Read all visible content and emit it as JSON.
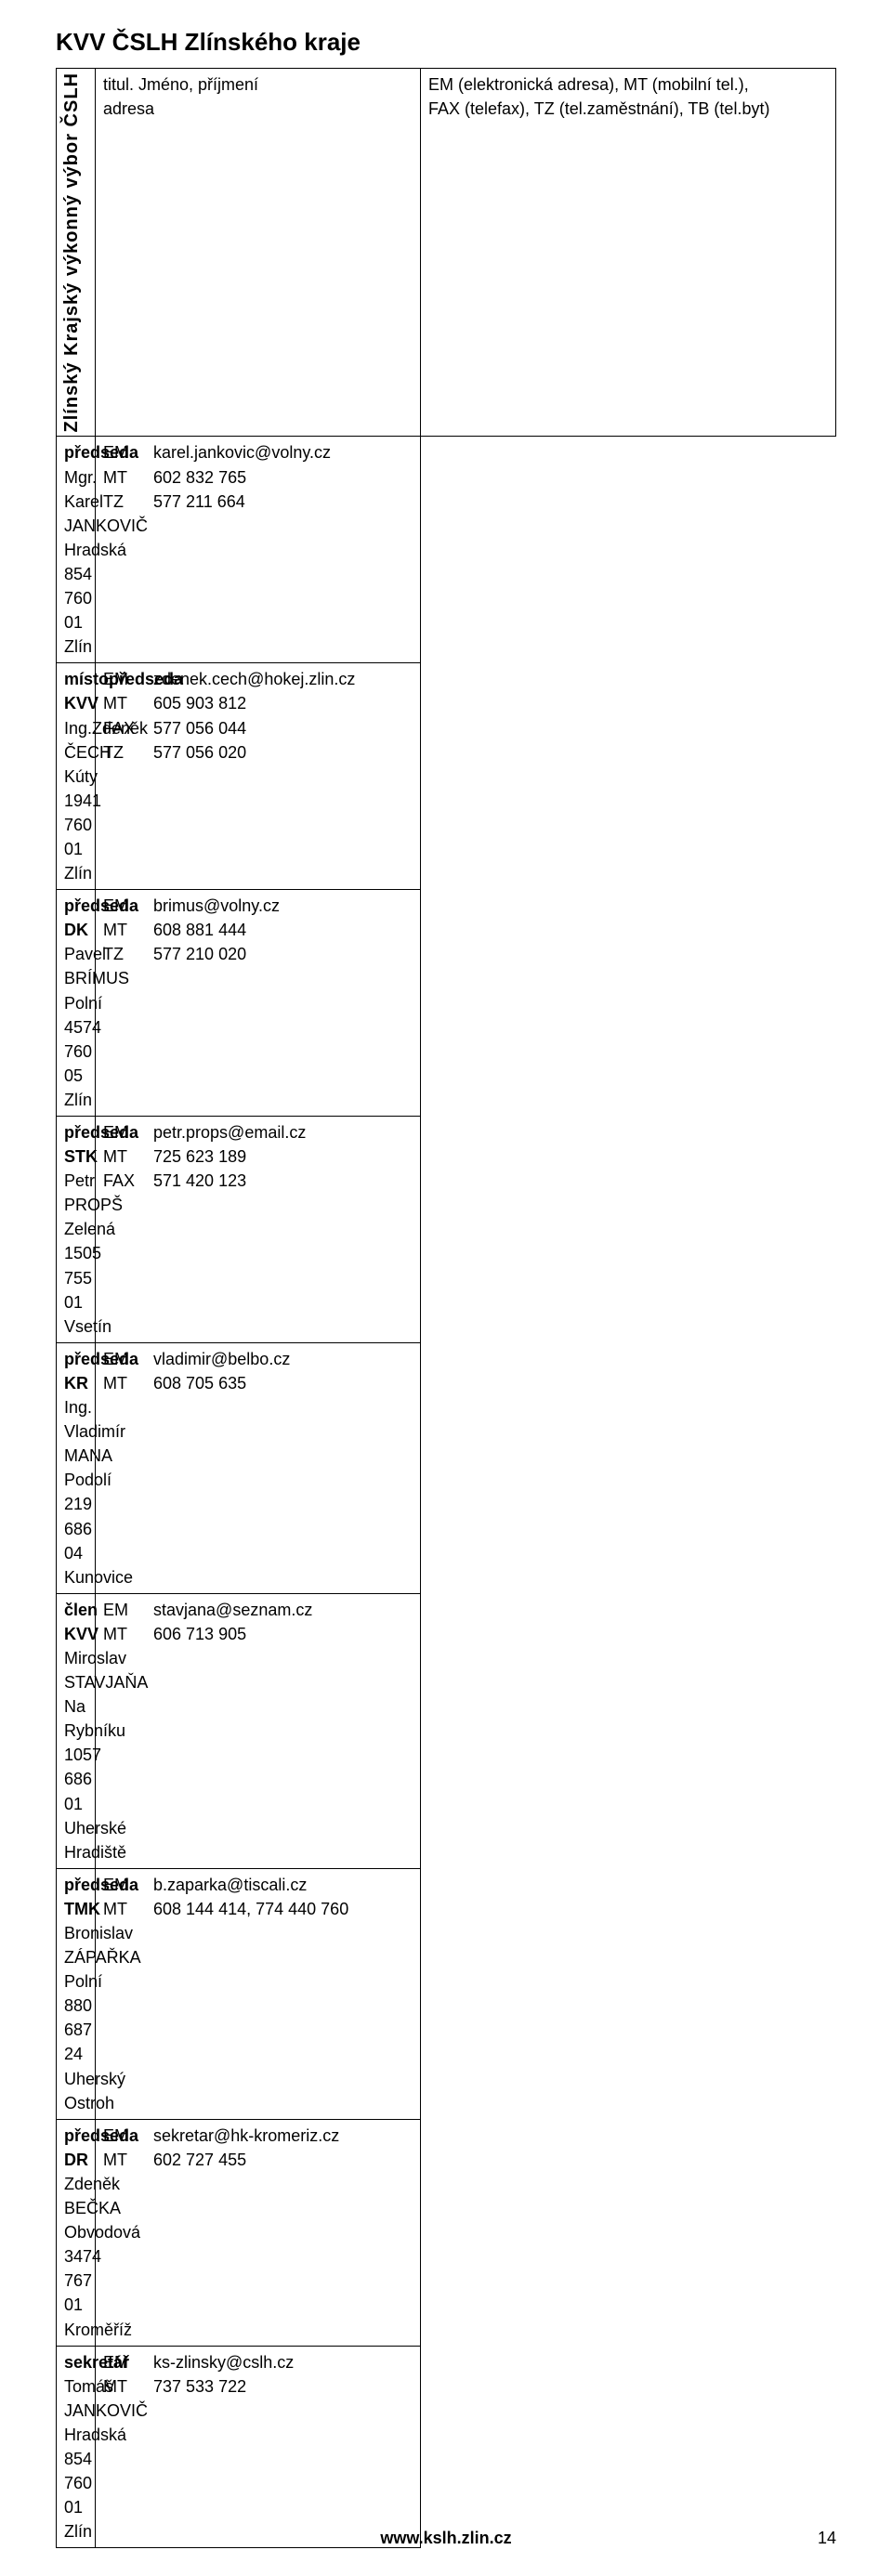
{
  "title": "KVV ČSLH Zlínského kraje",
  "sidebar_label": "Zlínský Krajský výkonný výbor ČSLH",
  "header_left_lines": [
    "titul. Jméno, příjmení",
    "adresa"
  ],
  "header_right_lines": [
    "EM (elektronická adresa), MT (mobilní tel.),",
    "FAX (telefax), TZ (tel.zaměstnání), TB (tel.byt)"
  ],
  "rows": [
    {
      "left": {
        "role": "předseda",
        "lines": [
          "Mgr. Karel JANKOVIČ",
          "Hradská 854",
          "760 01  Zlín"
        ]
      },
      "right": [
        [
          "EM",
          "karel.jankovic@volny.cz"
        ],
        [
          "MT",
          "602 832 765"
        ],
        [
          "TZ",
          "577 211 664"
        ]
      ]
    },
    {
      "left": {
        "role": "místopředseda KVV",
        "lines": [
          "Ing.Zdeněk ČECH",
          "Kúty 1941",
          "760 01  Zlín"
        ]
      },
      "right": [
        [
          "EM",
          "zdenek.cech@hokej.zlin.cz"
        ],
        [
          "MT",
          "605 903 812"
        ],
        [
          "FAX",
          "577 056 044"
        ],
        [
          "TZ",
          "577 056 020"
        ]
      ]
    },
    {
      "left": {
        "role": "předseda DK",
        "lines": [
          "Pavel BRÍMUS",
          "Polní 4574",
          "760 05  Zlín"
        ]
      },
      "right": [
        [
          "EM",
          "brimus@volny.cz"
        ],
        [
          "MT",
          "608 881 444"
        ],
        [
          "TZ",
          "577 210 020"
        ]
      ]
    },
    {
      "left": {
        "role": "předseda STK",
        "lines": [
          "Petr PROPŠ",
          "Zelená 1505",
          "755 01  Vsetín"
        ]
      },
      "right": [
        [
          "EM",
          "petr.props@email.cz"
        ],
        [
          "MT",
          "725 623 189"
        ],
        [
          "FAX",
          "571 420 123"
        ]
      ]
    },
    {
      "left": {
        "role": "předseda KR",
        "lines": [
          "Ing. Vladimír MANA",
          "Podolí 219",
          "686 04  Kunovice"
        ]
      },
      "right": [
        [
          "EM",
          "vladimir@belbo.cz"
        ],
        [
          "MT",
          "608 705 635"
        ]
      ]
    },
    {
      "left": {
        "role": "člen KVV",
        "lines": [
          "Miroslav STAVJAŇA",
          "Na Rybníku 1057",
          "686 01  Uherské Hradiště"
        ]
      },
      "right": [
        [
          "EM",
          "stavjana@seznam.cz"
        ],
        [
          "MT",
          "606 713 905"
        ]
      ]
    },
    {
      "left": {
        "role": "předseda TMK",
        "lines": [
          "Bronislav ZÁPAŘKA",
          "Polní 880",
          "687 24  Uherský Ostroh"
        ]
      },
      "right": [
        [
          "EM",
          "b.zaparka@tiscali.cz"
        ],
        [
          "MT",
          "608 144 414, 774 440 760"
        ]
      ]
    },
    {
      "left": {
        "role": "předseda DR",
        "lines": [
          "Zdeněk BEČKA",
          "Obvodová 3474",
          "767 01  Kroměříž"
        ]
      },
      "right": [
        [
          "EM",
          "sekretar@hk-kromeriz.cz"
        ],
        [
          "MT",
          "602 727 455"
        ]
      ]
    },
    {
      "left": {
        "role": "sekretář",
        "lines": [
          "Tomáš JANKOVIČ",
          "Hradská 854",
          "760 01  Zlín"
        ]
      },
      "right": [
        [
          "EM",
          "ks-zlinsky@cslh.cz"
        ],
        [
          "MT",
          "737 533 722"
        ]
      ]
    }
  ],
  "footer_url": "www.kslh.zlin.cz",
  "page_number": "14"
}
